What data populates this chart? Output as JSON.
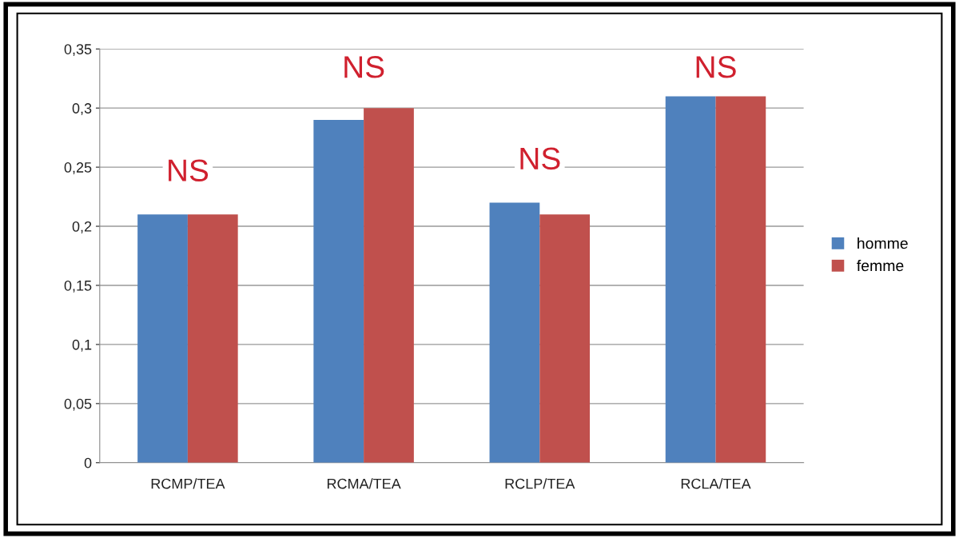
{
  "chart_data": {
    "type": "bar",
    "categories": [
      "RCMP/TEA",
      "RCMA/TEA",
      "RCLP/TEA",
      "RCLA/TEA"
    ],
    "series": [
      {
        "name": "homme",
        "color": "#4f81bd",
        "values": [
          0.21,
          0.29,
          0.22,
          0.31
        ]
      },
      {
        "name": "femme",
        "color": "#c0504d",
        "values": [
          0.21,
          0.3,
          0.21,
          0.31
        ]
      }
    ],
    "ylim": [
      0,
      0.35
    ],
    "yticks": [
      0,
      {
        "value": 0.05,
        "label": "0,05"
      },
      {
        "value": 0.1,
        "label": "0,1"
      },
      {
        "value": 0.15,
        "label": "0,15"
      },
      {
        "value": 0.2,
        "label": "0,2"
      },
      {
        "value": 0.25,
        "label": "0,25"
      },
      {
        "value": 0.3,
        "label": "0,3"
      },
      {
        "value": 0.35,
        "label": "0,35"
      }
    ],
    "grid": "y",
    "legend": "right",
    "annotations": [
      "NS",
      "NS",
      "NS",
      "NS"
    ]
  }
}
